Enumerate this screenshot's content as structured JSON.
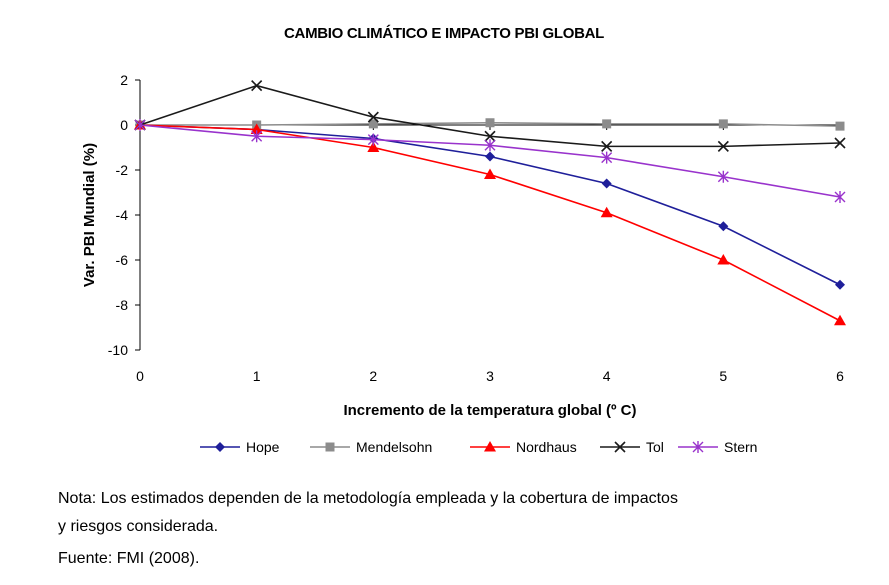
{
  "chart_data": {
    "type": "line",
    "title": "CAMBIO CLIMÁTICO E IMPACTO PBI GLOBAL",
    "xlabel": "Incremento de la temperatura global (º C)",
    "ylabel": "Var. PBI Mundial (%)",
    "x": [
      0,
      1,
      2,
      3,
      4,
      5,
      6
    ],
    "xlim": [
      0,
      6
    ],
    "ylim": [
      -10,
      2
    ],
    "yticks": [
      2,
      0,
      -2,
      -4,
      -6,
      -8,
      -10
    ],
    "grid": false,
    "legend_position": "bottom",
    "series": [
      {
        "name": "Hope",
        "color": "#1f1f9a",
        "marker": "diamond",
        "values": [
          0,
          -0.2,
          -0.6,
          -1.4,
          -2.6,
          -4.5,
          -7.1
        ]
      },
      {
        "name": "Mendelsohn",
        "color": "#8c8c8c",
        "marker": "square",
        "values": [
          0,
          0,
          0.05,
          0.1,
          0.05,
          0.05,
          -0.05
        ]
      },
      {
        "name": "Nordhaus",
        "color": "#ff0000",
        "marker": "triangle",
        "values": [
          0,
          -0.2,
          -1.0,
          -2.2,
          -3.9,
          -6.0,
          -8.7
        ]
      },
      {
        "name": "Tol",
        "color": "#1a1a1a",
        "marker": "x",
        "values": [
          0,
          1.75,
          0.35,
          -0.5,
          -0.95,
          -0.95,
          -0.8
        ]
      },
      {
        "name": "Stern",
        "color": "#9933cc",
        "marker": "star",
        "values": [
          0,
          -0.5,
          -0.65,
          -0.9,
          -1.45,
          -2.3,
          -3.2
        ]
      }
    ]
  },
  "notes": {
    "line1": "Nota: Los estimados dependen de la metodología empleada y la cobertura de impactos",
    "line2": "y riesgos considerada.",
    "source": "Fuente: FMI (2008)."
  }
}
